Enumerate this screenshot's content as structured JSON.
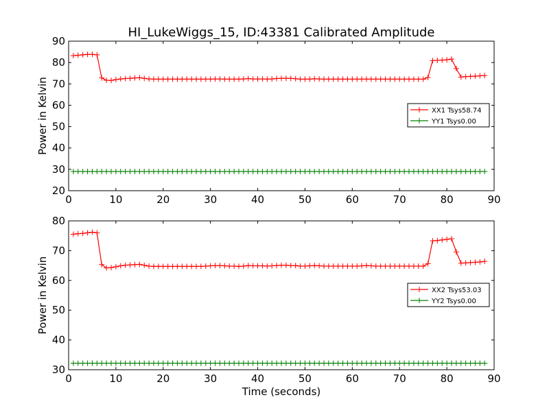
{
  "title": "HI_LukeWiggs_15, ID:43381 Calibrated Amplitude",
  "chart_data": [
    {
      "type": "line",
      "title": "HI_LukeWiggs_15, ID:43381 Calibrated Amplitude",
      "xlabel": "",
      "ylabel": "Power in Kelvin",
      "xlim": [
        0,
        90
      ],
      "ylim": [
        20,
        90
      ],
      "xticks": [
        "0",
        "10",
        "20",
        "30",
        "40",
        "50",
        "60",
        "70",
        "80",
        "90"
      ],
      "yticks": [
        "20",
        "30",
        "40",
        "50",
        "60",
        "70",
        "80",
        "90"
      ],
      "grid": false,
      "legend_position": "right",
      "x": [
        1,
        2,
        3,
        4,
        5,
        6,
        7,
        8,
        9,
        10,
        11,
        12,
        13,
        14,
        15,
        16,
        17,
        18,
        19,
        20,
        21,
        22,
        23,
        24,
        25,
        26,
        27,
        28,
        29,
        30,
        31,
        32,
        33,
        34,
        35,
        36,
        37,
        38,
        39,
        40,
        41,
        42,
        43,
        44,
        45,
        46,
        47,
        48,
        49,
        50,
        51,
        52,
        53,
        54,
        55,
        56,
        57,
        58,
        59,
        60,
        61,
        62,
        63,
        64,
        65,
        66,
        67,
        68,
        69,
        70,
        71,
        72,
        73,
        74,
        75,
        76,
        77,
        78,
        79,
        80,
        81,
        82,
        83,
        84,
        85,
        86,
        87,
        88
      ],
      "series": [
        {
          "name": "XX1 Tsys58.74",
          "color": "#ff0000",
          "values": [
            83.2,
            83.4,
            83.6,
            83.8,
            83.8,
            83.6,
            72.8,
            71.7,
            71.6,
            72.0,
            72.3,
            72.5,
            72.6,
            72.8,
            72.9,
            72.6,
            72.3,
            72.2,
            72.2,
            72.2,
            72.2,
            72.2,
            72.2,
            72.2,
            72.2,
            72.2,
            72.2,
            72.2,
            72.2,
            72.2,
            72.3,
            72.3,
            72.2,
            72.2,
            72.2,
            72.2,
            72.3,
            72.5,
            72.3,
            72.3,
            72.3,
            72.2,
            72.3,
            72.5,
            72.6,
            72.6,
            72.6,
            72.4,
            72.2,
            72.2,
            72.2,
            72.4,
            72.3,
            72.2,
            72.2,
            72.2,
            72.2,
            72.2,
            72.2,
            72.2,
            72.2,
            72.2,
            72.2,
            72.2,
            72.2,
            72.2,
            72.2,
            72.2,
            72.2,
            72.2,
            72.2,
            72.2,
            72.2,
            72.2,
            72.2,
            73.0,
            80.9,
            81.0,
            81.1,
            81.3,
            81.6,
            77.2,
            73.2,
            73.4,
            73.5,
            73.6,
            73.8,
            73.9
          ]
        },
        {
          "name": "YY1 Tsys0.00",
          "color": "#008000",
          "values": [
            29,
            29,
            29,
            29,
            29,
            29,
            29,
            29,
            29,
            29,
            29,
            29,
            29,
            29,
            29,
            29,
            29,
            29,
            29,
            29,
            29,
            29,
            29,
            29,
            29,
            29,
            29,
            29,
            29,
            29,
            29,
            29,
            29,
            29,
            29,
            29,
            29,
            29,
            29,
            29,
            29,
            29,
            29,
            29,
            29,
            29,
            29,
            29,
            29,
            29,
            29,
            29,
            29,
            29,
            29,
            29,
            29,
            29,
            29,
            29,
            29,
            29,
            29,
            29,
            29,
            29,
            29,
            29,
            29,
            29,
            29,
            29,
            29,
            29,
            29,
            29,
            29,
            29,
            29,
            29,
            29,
            29,
            29,
            29,
            29,
            29,
            29,
            29
          ]
        }
      ]
    },
    {
      "type": "line",
      "title": "",
      "xlabel": "Time (seconds)",
      "ylabel": "Power in Kelvin",
      "xlim": [
        0,
        90
      ],
      "ylim": [
        30,
        80
      ],
      "xticks": [
        "0",
        "10",
        "20",
        "30",
        "40",
        "50",
        "60",
        "70",
        "80",
        "90"
      ],
      "yticks": [
        "30",
        "40",
        "50",
        "60",
        "70",
        "80"
      ],
      "grid": false,
      "legend_position": "right",
      "x": [
        1,
        2,
        3,
        4,
        5,
        6,
        7,
        8,
        9,
        10,
        11,
        12,
        13,
        14,
        15,
        16,
        17,
        18,
        19,
        20,
        21,
        22,
        23,
        24,
        25,
        26,
        27,
        28,
        29,
        30,
        31,
        32,
        33,
        34,
        35,
        36,
        37,
        38,
        39,
        40,
        41,
        42,
        43,
        44,
        45,
        46,
        47,
        48,
        49,
        50,
        51,
        52,
        53,
        54,
        55,
        56,
        57,
        58,
        59,
        60,
        61,
        62,
        63,
        64,
        65,
        66,
        67,
        68,
        69,
        70,
        71,
        72,
        73,
        74,
        75,
        76,
        77,
        78,
        79,
        80,
        81,
        82,
        83,
        84,
        85,
        86,
        87,
        88
      ],
      "series": [
        {
          "name": "XX2 Tsys53.03",
          "color": "#ff0000",
          "values": [
            75.5,
            75.7,
            75.8,
            76.0,
            76.2,
            76.0,
            65.3,
            64.2,
            64.3,
            64.6,
            64.9,
            65.1,
            65.2,
            65.3,
            65.4,
            65.1,
            64.8,
            64.7,
            64.7,
            64.7,
            64.7,
            64.7,
            64.7,
            64.7,
            64.7,
            64.7,
            64.7,
            64.7,
            64.8,
            64.9,
            65.0,
            65.0,
            64.9,
            64.8,
            64.8,
            64.7,
            64.8,
            65.0,
            64.9,
            64.9,
            64.9,
            64.8,
            64.9,
            65.0,
            65.1,
            65.1,
            65.0,
            65.0,
            64.8,
            64.8,
            64.9,
            65.0,
            64.9,
            64.8,
            64.8,
            64.8,
            64.8,
            64.8,
            64.8,
            64.8,
            64.8,
            64.9,
            65.0,
            64.9,
            64.8,
            64.8,
            64.8,
            64.8,
            64.8,
            64.8,
            64.8,
            64.8,
            64.8,
            64.8,
            64.8,
            65.6,
            73.3,
            73.4,
            73.6,
            73.8,
            74.0,
            69.6,
            65.8,
            65.9,
            66.0,
            66.1,
            66.2,
            66.4
          ]
        },
        {
          "name": "YY2 Tsys0.00",
          "color": "#008000",
          "values": [
            32.2,
            32.2,
            32.2,
            32.2,
            32.2,
            32.2,
            32.2,
            32.2,
            32.2,
            32.2,
            32.2,
            32.2,
            32.2,
            32.2,
            32.2,
            32.2,
            32.2,
            32.2,
            32.2,
            32.2,
            32.2,
            32.2,
            32.2,
            32.2,
            32.2,
            32.2,
            32.2,
            32.2,
            32.2,
            32.2,
            32.2,
            32.2,
            32.2,
            32.2,
            32.2,
            32.2,
            32.2,
            32.2,
            32.2,
            32.2,
            32.2,
            32.2,
            32.2,
            32.2,
            32.2,
            32.2,
            32.2,
            32.2,
            32.2,
            32.2,
            32.2,
            32.2,
            32.2,
            32.2,
            32.2,
            32.2,
            32.2,
            32.2,
            32.2,
            32.2,
            32.2,
            32.2,
            32.2,
            32.2,
            32.2,
            32.2,
            32.2,
            32.2,
            32.2,
            32.2,
            32.2,
            32.2,
            32.2,
            32.2,
            32.2,
            32.2,
            32.2,
            32.2,
            32.2,
            32.2,
            32.2,
            32.2,
            32.2,
            32.2,
            32.2,
            32.2,
            32.2,
            32.2
          ]
        }
      ]
    }
  ]
}
